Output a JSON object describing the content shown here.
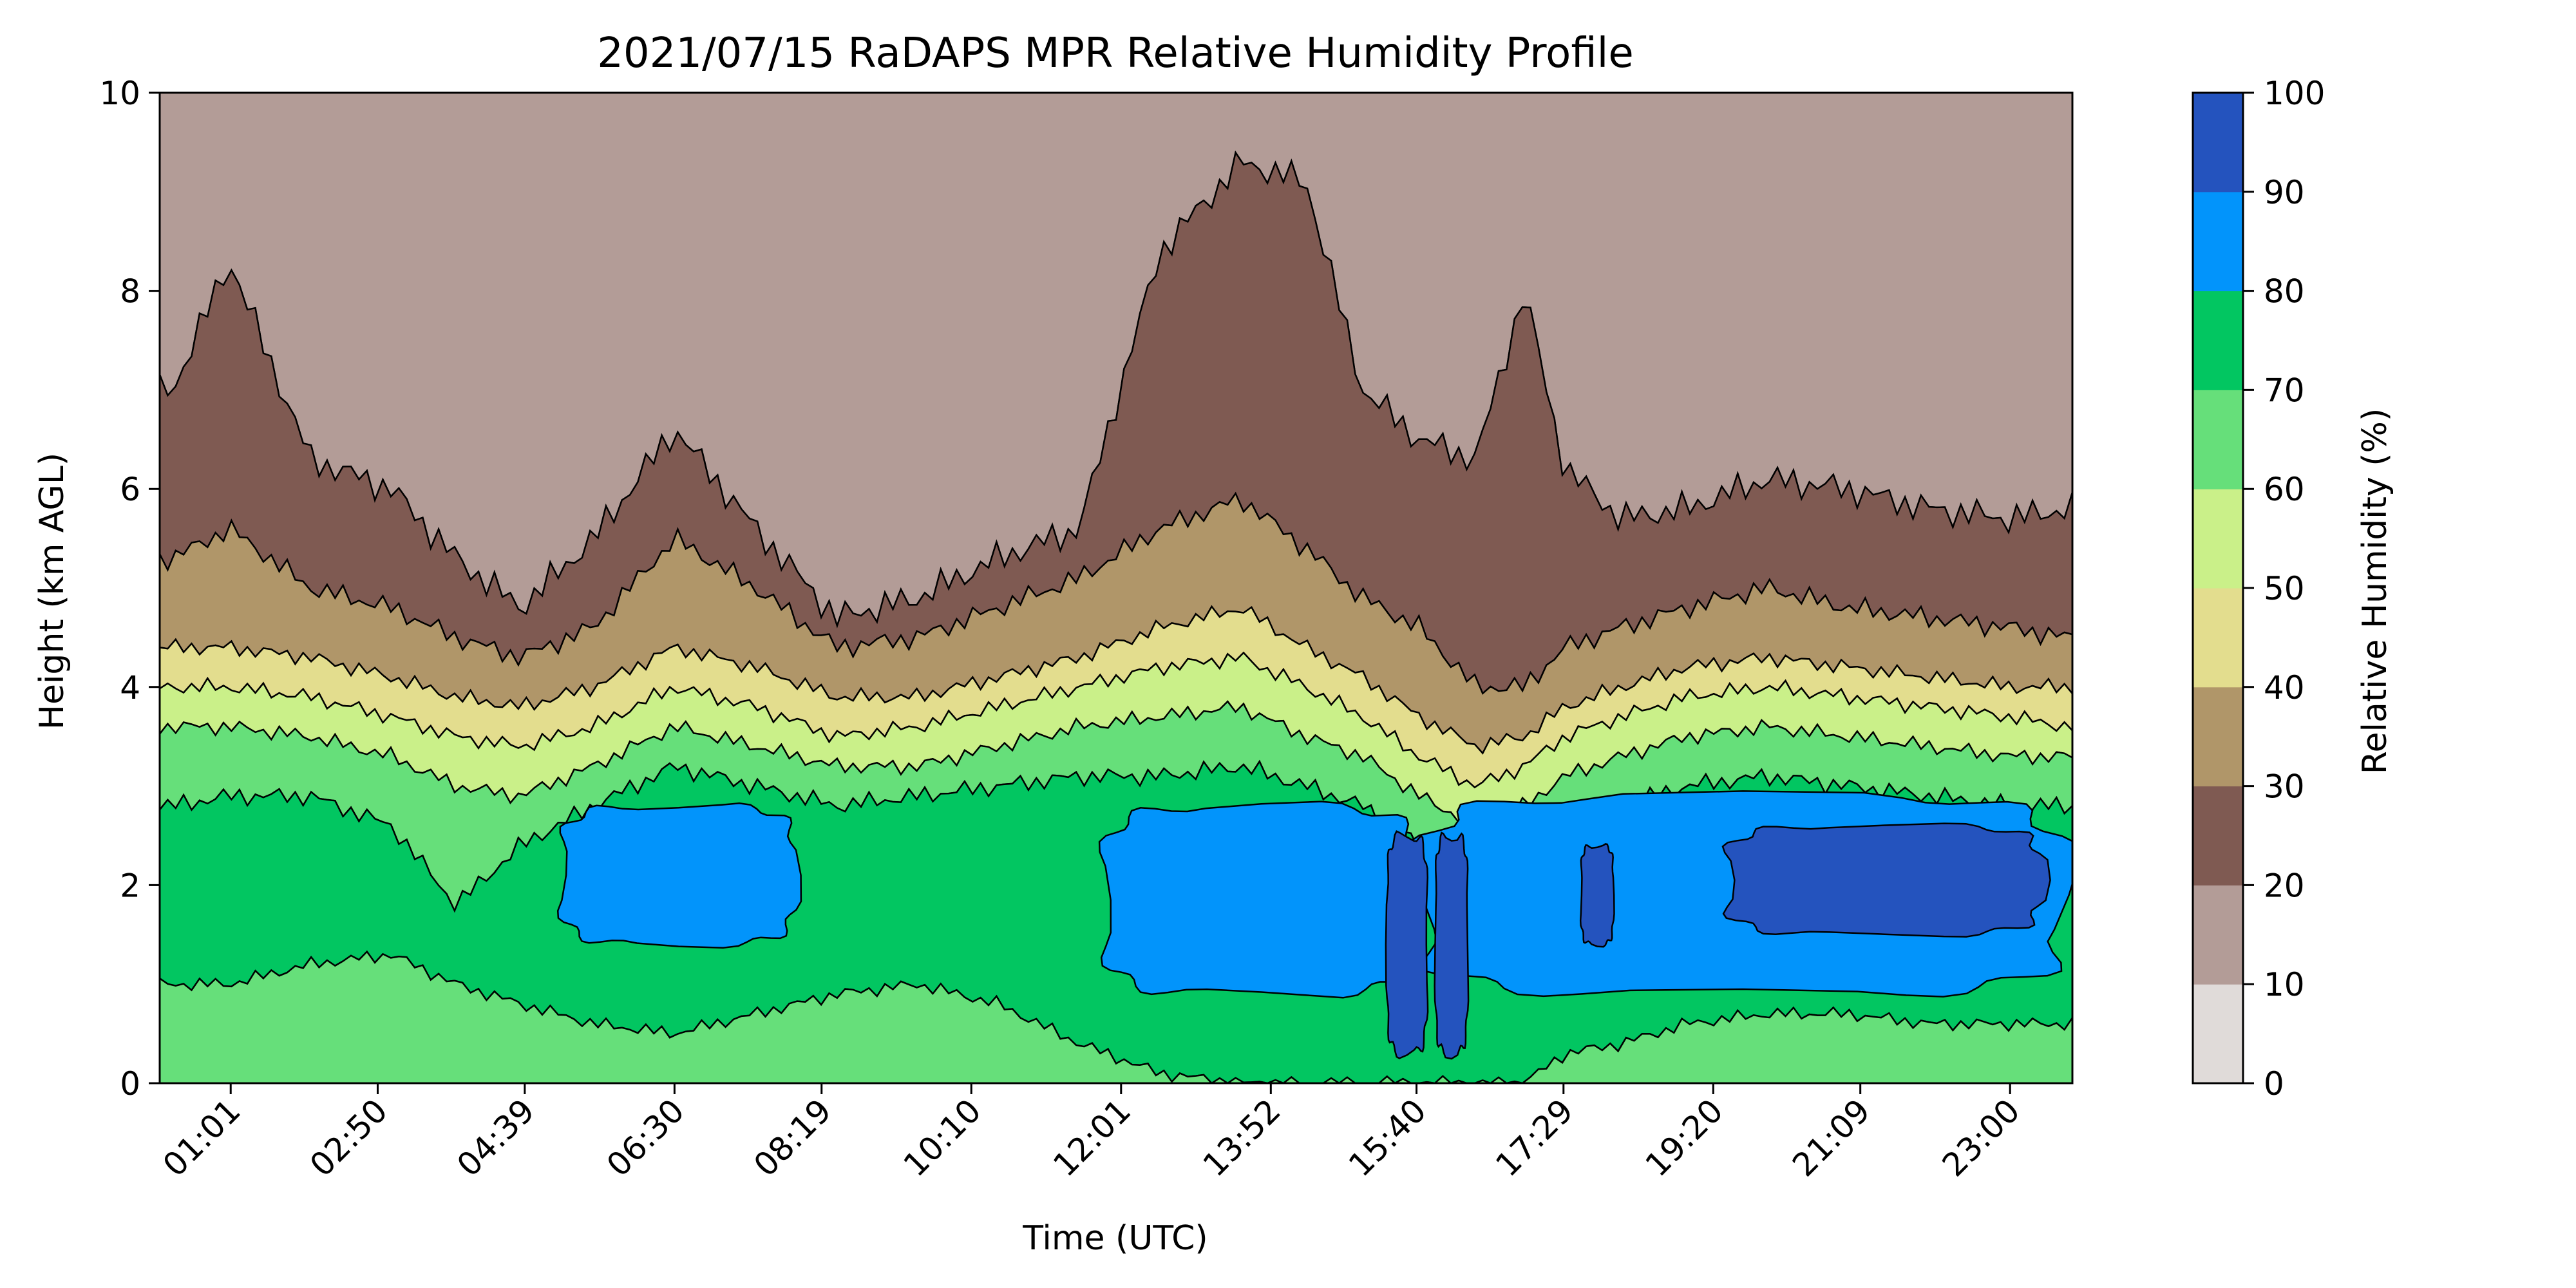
{
  "chart_data": {
    "type": "heatmap",
    "subtype": "filled-contour",
    "title": "2021/07/15 RaDAPS MPR Relative Humidity Profile",
    "xlabel": "Time (UTC)",
    "ylabel": "Height (km AGL)",
    "x_ticks": [
      "01:01",
      "02:50",
      "04:39",
      "06:30",
      "08:19",
      "10:10",
      "12:01",
      "13:52",
      "15:40",
      "17:29",
      "19:20",
      "21:09",
      "23:00"
    ],
    "ylim": [
      0,
      10
    ],
    "y_ticks": [
      "0",
      "2",
      "4",
      "6",
      "8",
      "10"
    ],
    "colorbar": {
      "label": "Relative Humidity (%)",
      "ticks": [
        "0",
        "10",
        "20",
        "30",
        "40",
        "50",
        "60",
        "70",
        "80",
        "90",
        "100"
      ],
      "levels": [
        0,
        10,
        20,
        30,
        40,
        50,
        60,
        70,
        80,
        90,
        100
      ],
      "colors": [
        "#e0dbd9",
        "#b39c97",
        "#7f5a52",
        "#b09669",
        "#e3dd8e",
        "#caf089",
        "#66df7a",
        "#02c661",
        "#0294fb",
        "#2453be"
      ]
    },
    "contour_boundaries_km": {
      "x_hours": [
        0.3,
        1.0,
        2.0,
        3.0,
        3.8,
        4.6,
        5.5,
        6.5,
        7.5,
        8.5,
        9.5,
        10.5,
        11.5,
        12.5,
        13.5,
        14.3,
        15.0,
        15.7,
        16.4,
        17.0,
        17.5,
        18.2,
        19.0,
        20.0,
        21.0,
        22.0,
        23.0,
        23.7
      ],
      "rh20": [
        7.0,
        8.3,
        6.3,
        6.0,
        5.3,
        4.8,
        5.5,
        6.6,
        5.6,
        4.7,
        4.9,
        5.3,
        5.6,
        8.4,
        9.3,
        9.1,
        7.0,
        6.5,
        6.3,
        8.0,
        6.2,
        5.7,
        5.8,
        6.1,
        6.0,
        5.8,
        5.7,
        5.8
      ],
      "rh30": [
        5.3,
        5.6,
        5.0,
        4.8,
        4.5,
        4.3,
        4.6,
        5.5,
        5.0,
        4.4,
        4.5,
        4.8,
        5.1,
        5.6,
        5.9,
        5.4,
        4.9,
        4.6,
        4.0,
        4.0,
        4.4,
        4.6,
        4.8,
        5.0,
        4.8,
        4.7,
        4.6,
        4.5
      ],
      "rh40": [
        4.4,
        4.4,
        4.3,
        4.1,
        3.9,
        3.8,
        4.0,
        4.4,
        4.2,
        3.9,
        3.9,
        4.1,
        4.3,
        4.6,
        4.8,
        4.4,
        4.1,
        3.7,
        3.4,
        3.5,
        3.8,
        4.0,
        4.2,
        4.3,
        4.2,
        4.1,
        4.0,
        4.0
      ],
      "rh50": [
        4.0,
        4.0,
        3.9,
        3.7,
        3.5,
        3.4,
        3.6,
        4.0,
        3.8,
        3.5,
        3.6,
        3.8,
        4.0,
        4.2,
        4.3,
        4.0,
        3.7,
        3.3,
        3.0,
        3.2,
        3.5,
        3.7,
        3.9,
        4.0,
        3.9,
        3.8,
        3.7,
        3.6
      ],
      "rh60": [
        3.6,
        3.6,
        3.5,
        3.3,
        3.0,
        2.9,
        3.2,
        3.6,
        3.4,
        3.2,
        3.2,
        3.4,
        3.6,
        3.7,
        3.8,
        3.5,
        3.3,
        2.9,
        2.6,
        2.8,
        3.1,
        3.3,
        3.5,
        3.6,
        3.5,
        3.4,
        3.3,
        3.3
      ],
      "rh70": [
        2.8,
        2.9,
        2.9,
        2.6,
        1.8,
        2.4,
        2.8,
        3.2,
        3.0,
        2.8,
        2.9,
        3.0,
        3.1,
        3.1,
        3.2,
        3.0,
        2.8,
        2.4,
        2.2,
        2.3,
        2.6,
        2.8,
        3.0,
        3.1,
        3.0,
        2.9,
        2.8,
        2.8
      ],
      "rh60_lower": [
        1.0,
        1.0,
        1.2,
        1.3,
        1.0,
        0.8,
        0.6,
        0.5,
        0.7,
        0.9,
        1.0,
        0.8,
        0.4,
        0.1,
        0.0,
        0.0,
        0.0,
        0.0,
        0.0,
        0.0,
        0.3,
        0.4,
        0.6,
        0.7,
        0.7,
        0.6,
        0.6,
        0.6
      ],
      "rh80_patches": [
        {
          "x_start": 5.1,
          "x_end": 8.0,
          "y_bottom": 1.4,
          "y_top": 2.8
        },
        {
          "x_start": 11.8,
          "x_end": 15.7,
          "y_bottom": 0.9,
          "y_top": 2.8
        },
        {
          "x_start": 15.7,
          "x_end": 23.7,
          "y_bottom": 0.9,
          "y_top": 2.9
        }
      ],
      "rh90_patches": [
        {
          "x_start": 15.3,
          "x_end": 15.8,
          "y_bottom": 0.3,
          "y_top": 2.5
        },
        {
          "x_start": 15.9,
          "x_end": 16.3,
          "y_bottom": 0.3,
          "y_top": 2.5
        },
        {
          "x_start": 17.7,
          "x_end": 18.1,
          "y_bottom": 1.4,
          "y_top": 2.4
        },
        {
          "x_start": 19.5,
          "x_end": 23.4,
          "y_bottom": 1.5,
          "y_top": 2.6
        }
      ]
    },
    "x_start_hours": 0.14,
    "x_end_hours": 23.77,
    "tick_hours": [
      1.017,
      2.833,
      4.65,
      6.5,
      8.317,
      10.167,
      12.017,
      13.867,
      15.667,
      17.483,
      19.333,
      21.15,
      23.0
    ]
  }
}
